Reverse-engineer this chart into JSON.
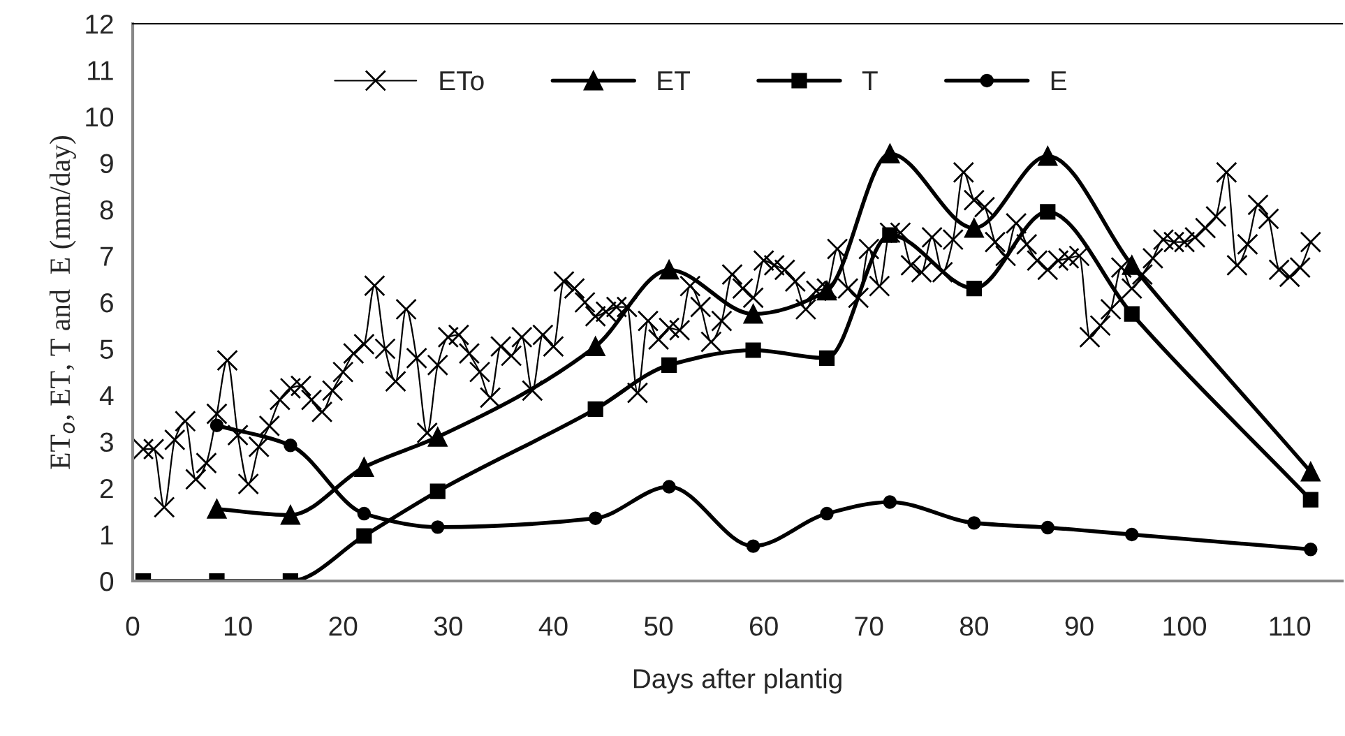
{
  "chart_data": {
    "type": "line",
    "xlabel": "Days after plantig",
    "ylabel": "ET$_{o}$, ET, T and  E (mm/day)",
    "xlim": [
      0,
      115
    ],
    "xticks": [
      0,
      10,
      20,
      30,
      40,
      50,
      60,
      70,
      80,
      90,
      100,
      110
    ],
    "ylim": [
      0,
      12
    ],
    "yticks": [
      0,
      1,
      2,
      3,
      4,
      5,
      6,
      7,
      8,
      9,
      10,
      11,
      12
    ],
    "grid": false,
    "legend": "top",
    "series": [
      {
        "name": "ETo",
        "color": "#000000",
        "marker": "cross",
        "x": [
          1,
          2,
          3,
          4,
          5,
          6,
          7,
          8,
          9,
          10,
          11,
          12,
          13,
          14,
          15,
          16,
          17,
          18,
          19,
          20,
          21,
          22,
          23,
          24,
          25,
          26,
          27,
          28,
          29,
          30,
          31,
          32,
          33,
          34,
          35,
          36,
          37,
          38,
          39,
          40,
          41,
          42,
          43,
          44,
          45,
          46,
          47,
          48,
          49,
          50,
          51,
          52,
          53,
          54,
          55,
          56,
          57,
          58,
          59,
          60,
          61,
          62,
          63,
          64,
          65,
          66,
          67,
          68,
          69,
          70,
          71,
          72,
          73,
          74,
          75,
          76,
          77,
          78,
          79,
          80,
          81,
          82,
          83,
          84,
          85,
          86,
          87,
          88,
          89,
          90,
          91,
          92,
          93,
          94,
          95,
          96,
          97,
          98,
          99,
          100,
          101,
          102,
          103,
          104,
          105,
          106,
          107,
          108,
          109,
          110,
          111,
          112
        ],
        "values": [
          2.84,
          2.84,
          1.59,
          3.04,
          3.44,
          2.19,
          2.54,
          3.6,
          4.75,
          3.14,
          2.09,
          2.89,
          3.34,
          3.9,
          4.15,
          4.2,
          3.9,
          3.64,
          4.1,
          4.5,
          4.9,
          5.1,
          6.36,
          5.0,
          4.3,
          5.85,
          4.8,
          3.19,
          4.65,
          5.25,
          5.3,
          4.9,
          4.5,
          3.95,
          5.05,
          4.85,
          5.25,
          4.1,
          5.3,
          5.05,
          6.45,
          6.3,
          6.0,
          5.7,
          5.8,
          5.9,
          5.9,
          4.05,
          5.6,
          5.2,
          5.45,
          5.4,
          6.35,
          5.9,
          5.15,
          5.6,
          6.6,
          6.3,
          6.1,
          6.9,
          6.8,
          6.7,
          6.45,
          5.85,
          6.25,
          6.3,
          7.15,
          6.3,
          6.1,
          7.15,
          6.35,
          7.5,
          7.5,
          6.8,
          6.65,
          7.4,
          6.65,
          7.35,
          8.8,
          8.2,
          8.05,
          7.3,
          7.0,
          7.7,
          7.25,
          6.9,
          6.7,
          6.9,
          6.95,
          7.0,
          5.25,
          5.5,
          5.85,
          6.75,
          6.3,
          6.6,
          6.95,
          7.35,
          7.3,
          7.3,
          7.4,
          7.6,
          7.85,
          8.8,
          6.8,
          7.25,
          8.1,
          7.8,
          6.7,
          6.55,
          6.75,
          7.3
        ]
      },
      {
        "name": "ET",
        "color": "#000000",
        "marker": "triangle",
        "x": [
          8,
          15,
          22,
          29,
          44,
          51,
          59,
          66,
          72,
          80,
          87,
          95,
          112
        ],
        "values": [
          1.55,
          1.42,
          2.45,
          3.1,
          5.05,
          6.7,
          5.75,
          6.25,
          9.2,
          7.6,
          9.15,
          6.8,
          2.35
        ]
      },
      {
        "name": "T",
        "color": "#000000",
        "marker": "square",
        "x": [
          1,
          8,
          15,
          22,
          29,
          44,
          51,
          59,
          66,
          72,
          80,
          87,
          95,
          112
        ],
        "values": [
          0,
          0,
          0,
          0.97,
          1.93,
          3.7,
          4.65,
          4.97,
          4.8,
          7.45,
          6.3,
          7.95,
          5.75,
          1.75
        ]
      },
      {
        "name": "E",
        "color": "#000000",
        "marker": "circle",
        "x": [
          8,
          15,
          22,
          29,
          44,
          51,
          59,
          66,
          72,
          80,
          87,
          95,
          112
        ],
        "values": [
          3.35,
          2.92,
          1.45,
          1.16,
          1.35,
          2.03,
          0.75,
          1.45,
          1.7,
          1.25,
          1.15,
          1.0,
          0.68
        ]
      }
    ]
  }
}
